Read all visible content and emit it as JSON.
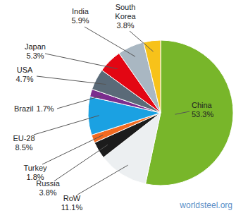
{
  "chart_data": {
    "type": "pie",
    "categories": [
      "China",
      "RoW",
      "Russia",
      "Turkey",
      "EU-28",
      "Brazil",
      "USA",
      "Japan",
      "India",
      "South Korea"
    ],
    "values": [
      53.3,
      11.1,
      3.8,
      1.8,
      8.5,
      1.7,
      4.7,
      5.3,
      5.9,
      3.8
    ],
    "value_labels": [
      "53.3%",
      "11.1%",
      "3.8%",
      "1.8%",
      "8.5%",
      "1.7%",
      "4.7%",
      "5.3%",
      "5.9%",
      "3.8%"
    ],
    "colors": [
      "#78b62a",
      "#eceff1",
      "#1c1c1c",
      "#f26a21",
      "#1ba1e2",
      "#7b2d8e",
      "#5a6a78",
      "#e30613",
      "#a9b7c2",
      "#f7c21a"
    ],
    "data_labels": true,
    "annotations": [
      "worldsteel.org"
    ]
  }
}
